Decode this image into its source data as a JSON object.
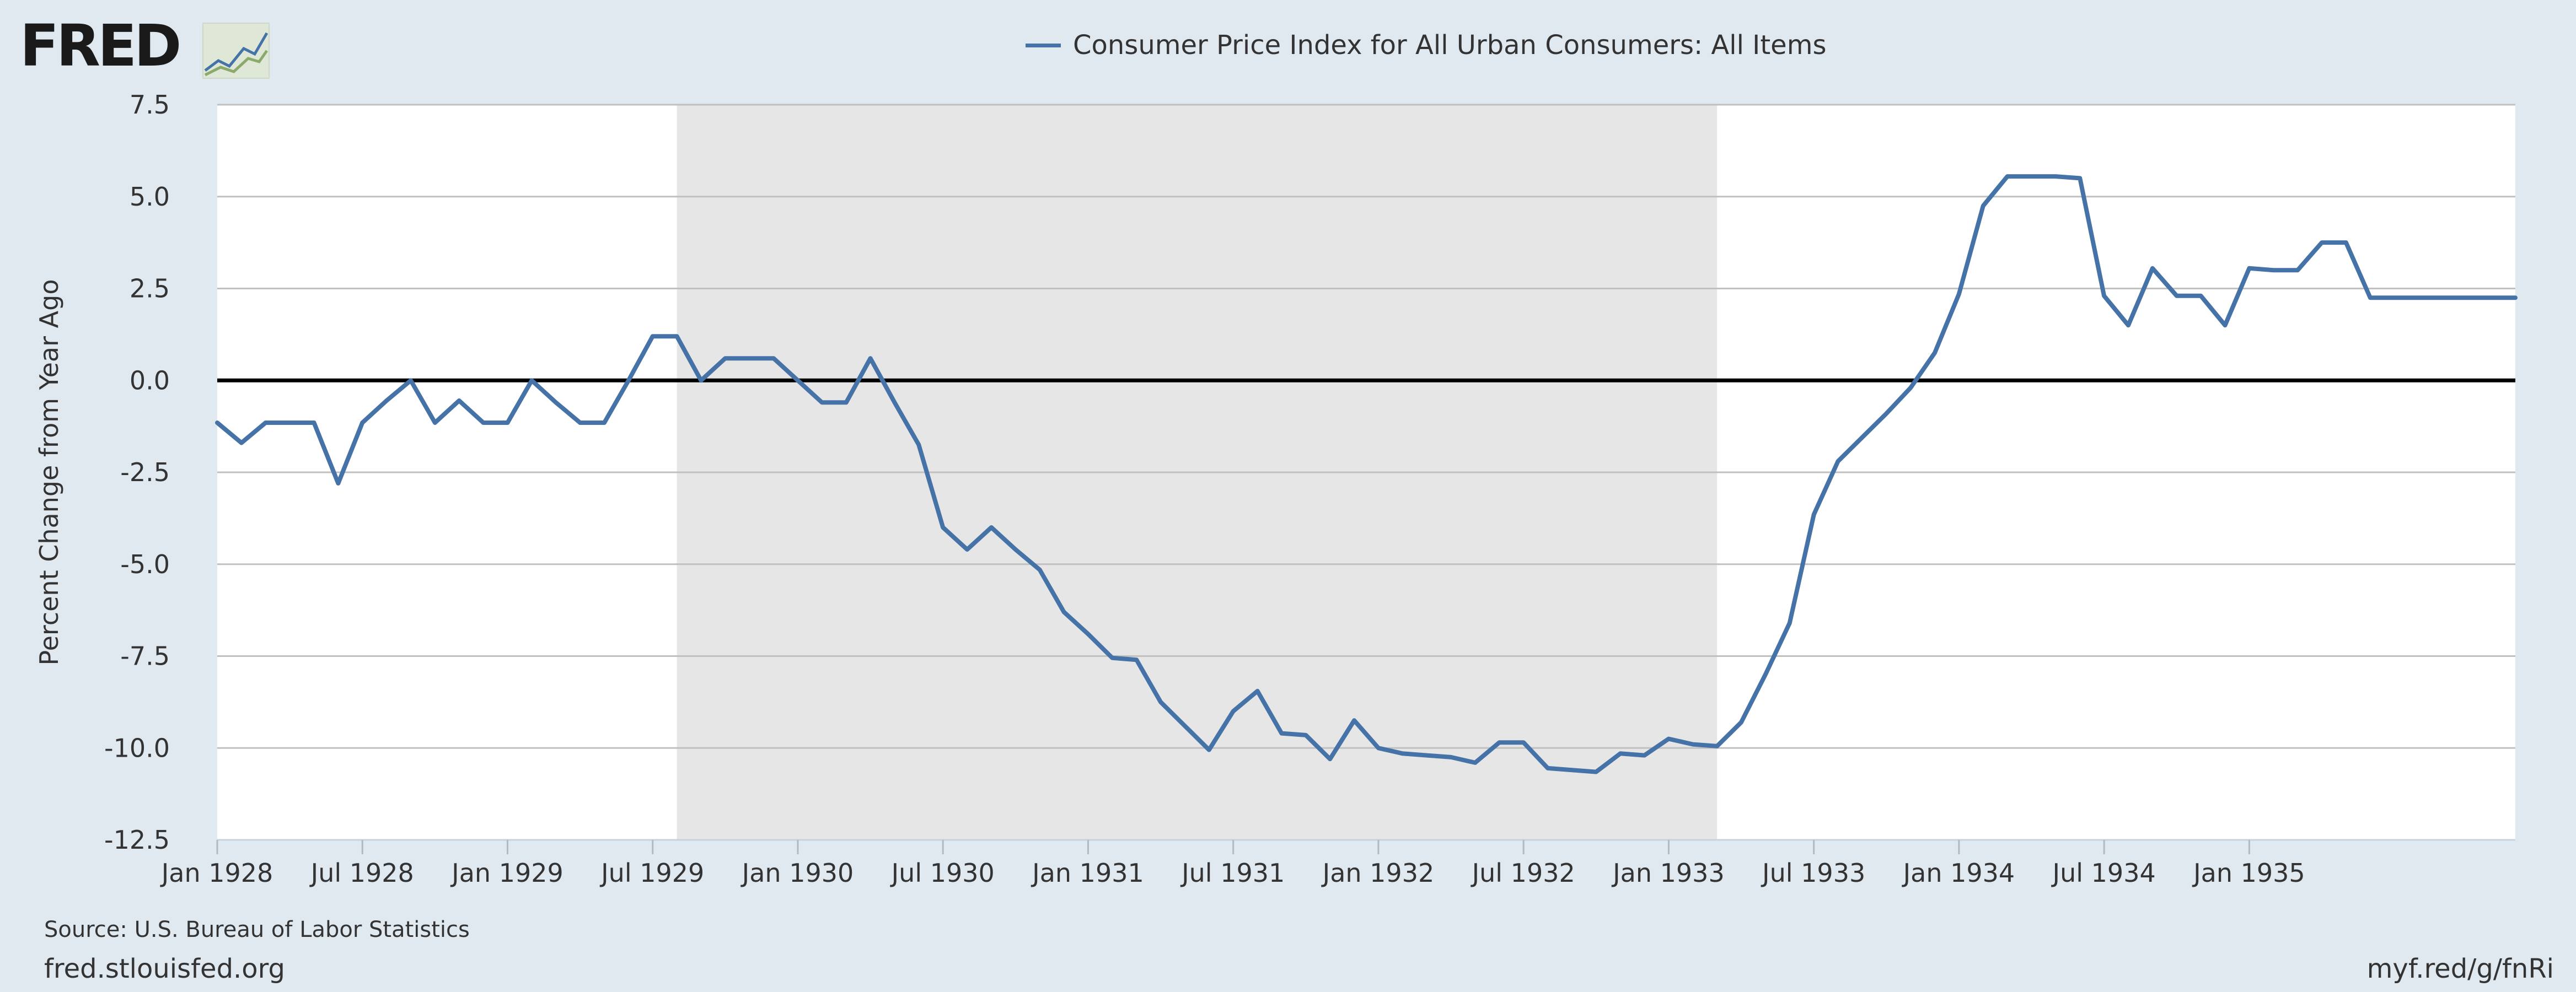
{
  "branding": {
    "logo_text": "FRED",
    "logo_icon": "line-graph-icon"
  },
  "footer": {
    "source": "Source: U.S. Bureau of Labor Statistics",
    "site": "fred.stlouisfed.org",
    "short_url": "myf.red/g/fnRi"
  },
  "colors": {
    "background": "#e1e9f0",
    "plot_bg": "#ffffff",
    "recession": "#e6e6e6",
    "series": "#4572a7",
    "grid": "#c0c0c0",
    "zero_line": "#000000"
  },
  "chart_data": {
    "type": "line",
    "title": "",
    "xlabel": "",
    "ylabel": "Percent Change from Year Ago",
    "ylim": [
      -12.5,
      7.5
    ],
    "xlim": [
      "1928-01",
      "1935-12"
    ],
    "y_ticks": [
      7.5,
      5.0,
      2.5,
      0.0,
      -2.5,
      -5.0,
      -7.5,
      -10.0,
      -12.5
    ],
    "y_tick_labels": [
      "7.5",
      "5.0",
      "2.5",
      "0.0",
      "-2.5",
      "-5.0",
      "-7.5",
      "-10.0",
      "-12.5"
    ],
    "x_ticks": [
      "1928-01",
      "1928-07",
      "1929-01",
      "1929-07",
      "1930-01",
      "1930-07",
      "1931-01",
      "1931-07",
      "1932-01",
      "1932-07",
      "1933-01",
      "1933-07",
      "1934-01",
      "1934-07",
      "1935-01"
    ],
    "x_tick_labels": [
      "Jan 1928",
      "Jul 1928",
      "Jan 1929",
      "Jul 1929",
      "Jan 1930",
      "Jul 1930",
      "Jan 1931",
      "Jul 1931",
      "Jan 1932",
      "Jul 1932",
      "Jan 1933",
      "Jul 1933",
      "Jan 1934",
      "Jul 1934",
      "Jan 1935"
    ],
    "grid": true,
    "zero_line": true,
    "legend_position": "top-center",
    "recession_shading": [
      {
        "start": "1929-08",
        "end": "1933-03"
      }
    ],
    "series": [
      {
        "name": "Consumer Price Index for All Urban Consumers: All Items",
        "color": "#4572a7",
        "x": [
          "1928-01",
          "1928-02",
          "1928-03",
          "1928-04",
          "1928-05",
          "1928-06",
          "1928-07",
          "1928-08",
          "1928-09",
          "1928-10",
          "1928-11",
          "1928-12",
          "1929-01",
          "1929-02",
          "1929-03",
          "1929-04",
          "1929-05",
          "1929-06",
          "1929-07",
          "1929-08",
          "1929-09",
          "1929-10",
          "1929-11",
          "1929-12",
          "1930-01",
          "1930-02",
          "1930-03",
          "1930-04",
          "1930-05",
          "1930-06",
          "1930-07",
          "1930-08",
          "1930-09",
          "1930-10",
          "1930-11",
          "1930-12",
          "1931-01",
          "1931-02",
          "1931-03",
          "1931-04",
          "1931-05",
          "1931-06",
          "1931-07",
          "1931-08",
          "1931-09",
          "1931-10",
          "1931-11",
          "1931-12",
          "1932-01",
          "1932-02",
          "1932-03",
          "1932-04",
          "1932-05",
          "1932-06",
          "1932-07",
          "1932-08",
          "1932-09",
          "1932-10",
          "1932-11",
          "1932-12",
          "1933-01",
          "1933-02",
          "1933-03",
          "1933-04",
          "1933-05",
          "1933-06",
          "1933-07",
          "1933-08",
          "1933-09",
          "1933-10",
          "1933-11",
          "1933-12",
          "1934-01",
          "1934-02",
          "1934-03",
          "1934-04",
          "1934-05",
          "1934-06",
          "1934-07",
          "1934-08",
          "1934-09",
          "1934-10",
          "1934-11",
          "1934-12",
          "1935-01",
          "1935-02",
          "1935-03",
          "1935-04",
          "1935-05",
          "1935-06",
          "1935-07",
          "1935-08",
          "1935-09",
          "1935-10",
          "1935-11",
          "1935-12"
        ],
        "values": [
          -1.15,
          -1.7,
          -1.15,
          -1.15,
          -1.15,
          -2.8,
          -1.15,
          -0.55,
          0.0,
          -1.15,
          -0.55,
          -1.15,
          -1.15,
          0.0,
          -0.6,
          -1.15,
          -1.15,
          0.0,
          1.2,
          1.2,
          0.0,
          0.6,
          0.6,
          0.6,
          0.0,
          -0.6,
          -0.6,
          0.6,
          -0.6,
          -1.75,
          -4.0,
          -4.6,
          -4.0,
          -4.6,
          -5.15,
          -6.3,
          -6.9,
          -7.55,
          -7.6,
          -8.75,
          -9.4,
          -10.05,
          -9.0,
          -8.45,
          -9.6,
          -9.65,
          -10.3,
          -9.25,
          -10.0,
          -10.15,
          -10.2,
          -10.25,
          -10.4,
          -9.85,
          -9.85,
          -10.55,
          -10.6,
          -10.65,
          -10.15,
          -10.2,
          -9.75,
          -9.9,
          -9.95,
          -9.3,
          -8.0,
          -6.6,
          -3.65,
          -2.2,
          -1.55,
          -0.9,
          -0.2,
          0.75,
          2.35,
          4.75,
          5.55,
          5.55,
          5.55,
          5.5,
          2.3,
          1.5,
          3.05,
          2.3,
          2.3,
          1.5,
          3.05,
          3.0,
          3.0,
          3.75,
          3.75,
          2.25,
          2.25,
          2.25,
          2.25,
          2.25,
          2.25,
          2.25
        ]
      }
    ]
  }
}
